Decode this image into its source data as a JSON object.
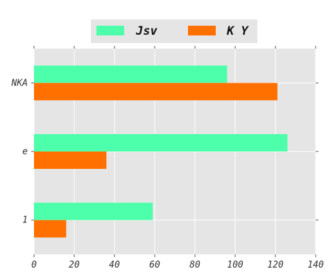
{
  "chart_data": {
    "type": "bar",
    "orientation": "horizontal",
    "categories": [
      "1",
      "e",
      "NKA"
    ],
    "series": [
      {
        "name": "Jsv",
        "values": [
          59,
          126,
          96
        ],
        "color": "#4dffaa"
      },
      {
        "name": "K Y",
        "values": [
          16,
          36,
          121
        ],
        "color": "#ff7000"
      }
    ],
    "xlim": [
      0,
      140
    ],
    "xticks": [
      0,
      20,
      40,
      60,
      80,
      100,
      120,
      140
    ],
    "xtick_labels": [
      "0",
      "20",
      "40",
      "60",
      "80",
      "100",
      "120",
      "140"
    ],
    "grid": true,
    "legend_position": "top-center",
    "background_color": "#e5e5e5"
  }
}
